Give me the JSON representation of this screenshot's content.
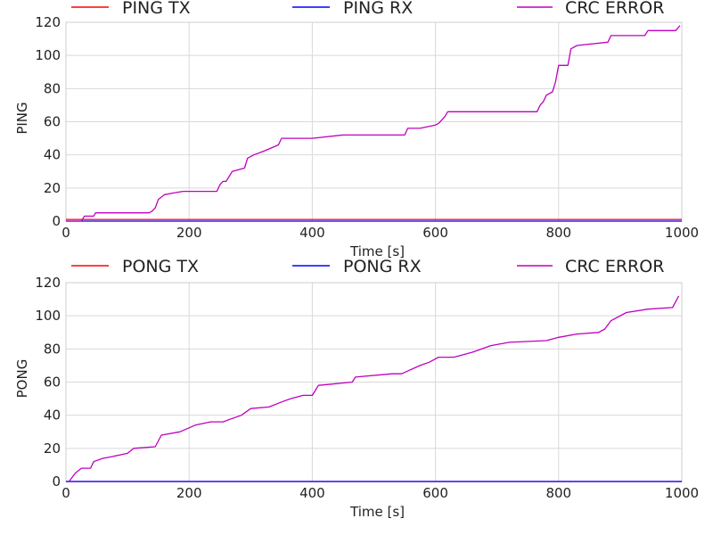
{
  "chart_data": [
    {
      "type": "line",
      "title": "",
      "xlabel": "Time [s]",
      "ylabel": "PING",
      "xlim": [
        0,
        1000
      ],
      "ylim": [
        0,
        120
      ],
      "xticks": [
        0,
        200,
        400,
        600,
        800,
        1000
      ],
      "yticks": [
        0,
        20,
        40,
        60,
        80,
        100,
        120
      ],
      "grid": true,
      "legend_position": "top",
      "series": [
        {
          "name": "PING TX",
          "color": "#ff0000",
          "x": [
            0,
            1000
          ],
          "y": [
            1,
            1
          ]
        },
        {
          "name": "PING RX",
          "color": "#0000ff",
          "x": [
            0,
            1000
          ],
          "y": [
            0,
            0
          ]
        },
        {
          "name": "CRC ERROR",
          "color": "#bf00bf",
          "x": [
            0,
            25,
            30,
            45,
            48,
            135,
            140,
            145,
            150,
            160,
            175,
            190,
            245,
            250,
            255,
            260,
            270,
            290,
            295,
            305,
            320,
            345,
            350,
            400,
            450,
            550,
            555,
            575,
            600,
            605,
            615,
            620,
            700,
            765,
            770,
            775,
            780,
            790,
            795,
            800,
            815,
            820,
            830,
            880,
            885,
            940,
            945,
            990,
            997
          ],
          "y": [
            0,
            0,
            3,
            3,
            5,
            5,
            6,
            8,
            13,
            16,
            17,
            18,
            18,
            22,
            24,
            24,
            30,
            32,
            38,
            40,
            42,
            46,
            50,
            50,
            52,
            52,
            56,
            56,
            58,
            59,
            63,
            66,
            66,
            66,
            70,
            72,
            76,
            78,
            84,
            94,
            94,
            104,
            106,
            108,
            112,
            112,
            115,
            115,
            118
          ]
        }
      ]
    },
    {
      "type": "line",
      "title": "",
      "xlabel": "Time [s]",
      "ylabel": "PONG",
      "xlim": [
        0,
        1000
      ],
      "ylim": [
        0,
        120
      ],
      "xticks": [
        0,
        200,
        400,
        600,
        800,
        1000
      ],
      "yticks": [
        0,
        20,
        40,
        60,
        80,
        100,
        120
      ],
      "grid": true,
      "legend_position": "top",
      "series": [
        {
          "name": "PONG TX",
          "color": "#ff0000",
          "x": [
            0,
            1000
          ],
          "y": [
            0,
            0
          ]
        },
        {
          "name": "PONG RX",
          "color": "#0000ff",
          "x": [
            0,
            1000
          ],
          "y": [
            0,
            0
          ]
        },
        {
          "name": "CRC ERROR",
          "color": "#bf00bf",
          "x": [
            5,
            15,
            25,
            40,
            45,
            60,
            75,
            100,
            110,
            145,
            155,
            185,
            210,
            235,
            255,
            285,
            300,
            330,
            350,
            365,
            385,
            400,
            410,
            465,
            470,
            530,
            545,
            575,
            590,
            605,
            630,
            660,
            690,
            720,
            780,
            800,
            830,
            865,
            875,
            885,
            910,
            945,
            985,
            995
          ],
          "y": [
            0,
            5,
            8,
            8,
            12,
            14,
            15,
            17,
            20,
            21,
            28,
            30,
            34,
            36,
            36,
            40,
            44,
            45,
            48,
            50,
            52,
            52,
            58,
            60,
            63,
            65,
            65,
            70,
            72,
            75,
            75,
            78,
            82,
            84,
            85,
            87,
            89,
            90,
            92,
            97,
            102,
            104,
            105,
            112
          ]
        }
      ]
    }
  ]
}
